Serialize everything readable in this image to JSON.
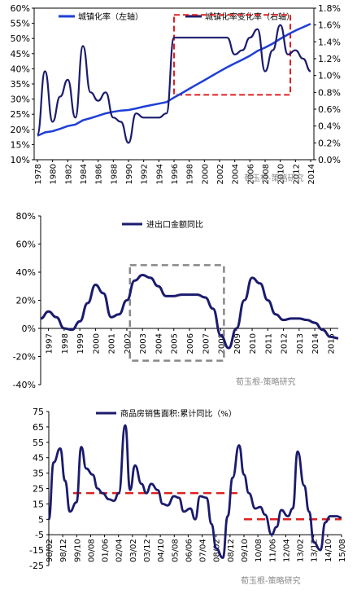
{
  "colors": {
    "series_blue": "#1f3fd6",
    "series_navy": "#1b1b6e",
    "highlight_red": "#e02020",
    "highlight_gray": "#888888"
  },
  "watermark": "荀玉根-策略研究",
  "chart_data": [
    {
      "type": "line",
      "x": [
        "1978",
        "1979",
        "1980",
        "1981",
        "1982",
        "1983",
        "1984",
        "1985",
        "1986",
        "1987",
        "1988",
        "1989",
        "1990",
        "1991",
        "1992",
        "1993",
        "1994",
        "1995",
        "1996",
        "1997",
        "1998",
        "1999",
        "2000",
        "2001",
        "2002",
        "2003",
        "2004",
        "2005",
        "2006",
        "2007",
        "2008",
        "2009",
        "2010",
        "2011",
        "2012",
        "2013",
        "2014"
      ],
      "xtick_labels": [
        "1978",
        "1980",
        "1982",
        "1984",
        "1986",
        "1988",
        "1990",
        "1992",
        "1994",
        "1996",
        "1998",
        "2000",
        "2002",
        "2004",
        "2006",
        "2008",
        "2010",
        "2012",
        "2014"
      ],
      "series": [
        {
          "name": "城镇化率（左轴）",
          "axis": "left",
          "values": [
            17.9,
            19.0,
            19.4,
            20.2,
            21.1,
            21.6,
            23.0,
            23.7,
            24.5,
            25.3,
            25.8,
            26.2,
            26.4,
            26.9,
            27.5,
            28.0,
            28.5,
            29.0,
            30.5,
            31.9,
            33.4,
            34.8,
            36.2,
            37.7,
            39.1,
            40.5,
            41.8,
            43.0,
            44.3,
            45.9,
            47.0,
            48.3,
            49.9,
            51.3,
            52.6,
            53.7,
            54.8
          ]
        },
        {
          "name": "城镇化率变化率（右轴）",
          "axis": "right",
          "values": [
            0.3,
            1.05,
            0.45,
            0.75,
            0.95,
            0.5,
            1.35,
            0.8,
            0.7,
            0.8,
            0.5,
            0.45,
            0.2,
            0.55,
            0.5,
            0.5,
            0.5,
            0.55,
            1.45,
            1.45,
            1.45,
            1.45,
            1.45,
            1.45,
            1.45,
            1.45,
            1.25,
            1.3,
            1.45,
            1.55,
            1.05,
            1.3,
            1.6,
            1.25,
            1.3,
            1.2,
            1.05
          ]
        }
      ],
      "yticks_left": [
        "10%",
        "15%",
        "20%",
        "25%",
        "30%",
        "35%",
        "40%",
        "45%",
        "50%",
        "55%",
        "60%"
      ],
      "yticks_right": [
        "0.0%",
        "0.2%",
        "0.4%",
        "0.6%",
        "0.8%",
        "1.0%",
        "1.2%",
        "1.4%",
        "1.6%",
        "1.8%"
      ],
      "ylim_left": [
        10,
        60
      ],
      "ylim_right": [
        0,
        1.8
      ],
      "highlight_box": {
        "style": "red-dashed",
        "x_from": "1996",
        "x_to": "2011",
        "y_from": 0.77,
        "y_to": 1.72
      },
      "legend_position": "top"
    },
    {
      "type": "line",
      "x": [
        1996.5,
        1997,
        1997.5,
        1998,
        1998.5,
        1999,
        1999.5,
        2000,
        2000.5,
        2001,
        2001.5,
        2002,
        2002.5,
        2003,
        2003.5,
        2004,
        2004.5,
        2005,
        2005.5,
        2006,
        2006.5,
        2007,
        2007.5,
        2008,
        2008.5,
        2009,
        2009.5,
        2010,
        2010.5,
        2011,
        2011.5,
        2012,
        2012.5,
        2013,
        2013.5,
        2014,
        2014.5,
        2015,
        2015.5
      ],
      "xtick_labels": [
        "1997",
        "1998",
        "1999",
        "2000",
        "2001",
        "2002",
        "2003",
        "2004",
        "2005",
        "2006",
        "2007",
        "2008",
        "2009",
        "2010",
        "2011",
        "2012",
        "2013",
        "2014",
        "2015"
      ],
      "series": [
        {
          "name": "进出口金额同比",
          "values": [
            7,
            12,
            8,
            0,
            -1,
            5,
            18,
            31,
            25,
            8,
            10,
            20,
            34,
            38,
            36,
            30,
            23,
            23,
            24,
            24,
            24,
            22,
            14,
            -5,
            -14,
            0,
            20,
            36,
            32,
            20,
            10,
            6,
            7,
            7,
            6,
            4,
            -1,
            -6,
            -7
          ]
        }
      ],
      "yticks": [
        "-40%",
        "-20%",
        "0%",
        "20%",
        "40%",
        "60%",
        "80%"
      ],
      "ylim": [
        -40,
        80
      ],
      "highlight_box": {
        "style": "gray-dashed",
        "x_from": 2002.2,
        "x_to": 2008.2,
        "y_from": -23,
        "y_to": 45
      },
      "legend_position": "top"
    },
    {
      "type": "line",
      "x": [
        1998.0,
        1998.3,
        1998.7,
        1999.0,
        1999.3,
        1999.7,
        2000.0,
        2000.3,
        2000.7,
        2001.0,
        2001.3,
        2001.7,
        2002.0,
        2002.3,
        2002.7,
        2003.0,
        2003.3,
        2003.7,
        2004.0,
        2004.3,
        2004.7,
        2005.0,
        2005.3,
        2005.7,
        2006.0,
        2006.3,
        2006.7,
        2007.0,
        2007.3,
        2007.7,
        2008.0,
        2008.3,
        2008.7,
        2009.0,
        2009.3,
        2009.7,
        2010.0,
        2010.3,
        2010.7,
        2011.0,
        2011.3,
        2011.7,
        2012.0,
        2012.3,
        2012.7,
        2013.0,
        2013.3,
        2013.7,
        2014.0,
        2014.3,
        2014.7,
        2015.0,
        2015.3,
        2015.7,
        2016.0
      ],
      "xtick_labels": [
        "98/02",
        "98/12",
        "99/10",
        "00/08",
        "01/06",
        "02/04",
        "03/02",
        "03/12",
        "04/10",
        "05/08",
        "06/06",
        "07/04",
        "08/02",
        "08/12",
        "09/10",
        "10/08",
        "11/06",
        "12/04",
        "13/02",
        "13/12",
        "14/10",
        "15/08"
      ],
      "series": [
        {
          "name": "商品房销售面积:累计同比（%）",
          "values": [
            5,
            42,
            51,
            30,
            10,
            16,
            52,
            38,
            34,
            25,
            22,
            18,
            17,
            22,
            66,
            24,
            40,
            28,
            22,
            28,
            24,
            15,
            14,
            20,
            19,
            10,
            12,
            5,
            20,
            19,
            2,
            -14,
            -20,
            7,
            32,
            53,
            34,
            22,
            12,
            13,
            8,
            -5,
            0,
            11,
            7,
            12,
            49,
            27,
            10,
            -10,
            -15,
            3,
            7,
            7,
            6
          ],
          "start_label": "98/02"
        }
      ],
      "yticks": [
        "-25",
        "-15",
        "-5",
        "5",
        "15",
        "25",
        "35",
        "45",
        "55",
        "65",
        "75"
      ],
      "ylim": [
        -25,
        75
      ],
      "reference_lines": [
        {
          "style": "red-dashed",
          "value": 22,
          "x_from": 1999.5,
          "x_to": 2009.8
        },
        {
          "style": "red-dashed",
          "value": 5,
          "x_from": 2010.0,
          "x_to": 2016.0
        }
      ],
      "legend_position": "top"
    }
  ]
}
